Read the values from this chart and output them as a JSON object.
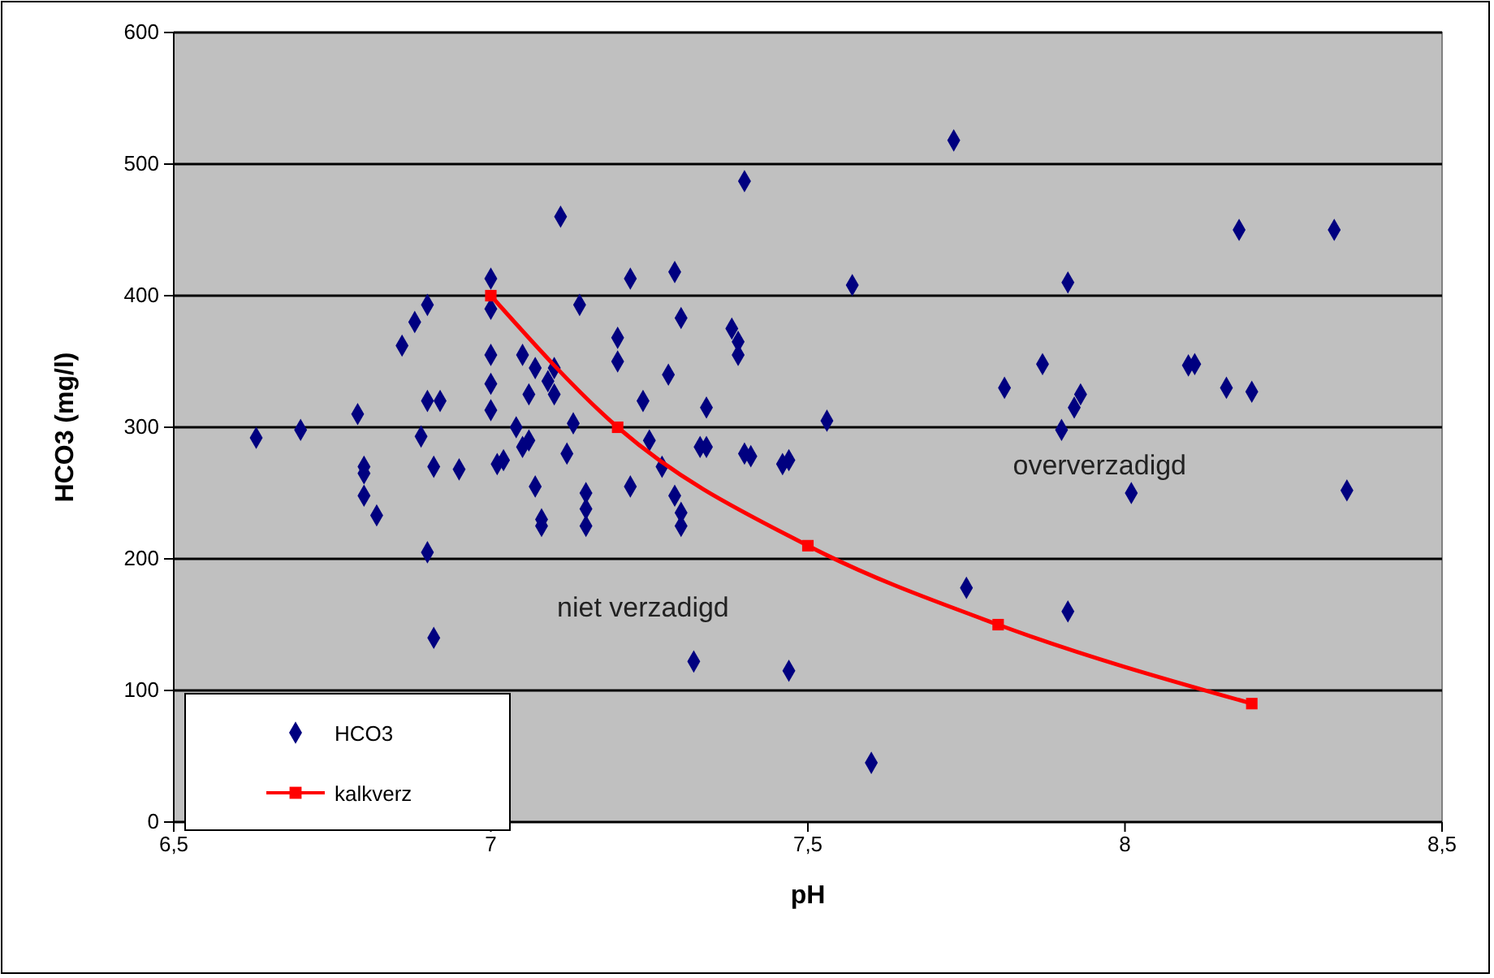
{
  "chart_data": {
    "type": "scatter",
    "xlabel": "pH",
    "ylabel": "HCO3 (mg/l)",
    "xlim": [
      6.5,
      8.5
    ],
    "xticks": [
      {
        "value": 6.5,
        "label": "6,5"
      },
      7,
      {
        "value": 7.5,
        "label": "7,5"
      },
      8,
      {
        "value": 8.5,
        "label": "8,5"
      }
    ],
    "ylim": [
      0,
      600
    ],
    "yticks": [
      0,
      100,
      200,
      300,
      400,
      500,
      600
    ],
    "grid": "y",
    "legend": "bottom left",
    "annotations": [
      "niet verzadigd",
      "oververzadigd"
    ],
    "series": [
      {
        "name": "HCO3",
        "color": "#000080",
        "marker": "diamond",
        "x": [
          6.63,
          6.7,
          6.79,
          6.8,
          6.8,
          6.8,
          6.82,
          6.86,
          6.88,
          6.9,
          6.89,
          6.9,
          6.92,
          6.91,
          6.9,
          6.91,
          6.95,
          7.0,
          7.0,
          7.0,
          7.0,
          7.0,
          7.01,
          7.02,
          7.04,
          7.05,
          7.06,
          7.07,
          7.05,
          7.06,
          7.07,
          7.08,
          7.08,
          7.09,
          7.1,
          7.1,
          7.11,
          7.12,
          7.13,
          7.14,
          7.15,
          7.15,
          7.15,
          7.2,
          7.2,
          7.22,
          7.22,
          7.24,
          7.25,
          7.28,
          7.27,
          7.29,
          7.3,
          7.29,
          7.3,
          7.3,
          7.32,
          7.33,
          7.34,
          7.34,
          7.38,
          7.39,
          7.39,
          7.4,
          7.4,
          7.41,
          7.46,
          7.47,
          7.47,
          7.53,
          7.57,
          7.6,
          7.73,
          7.75,
          7.81,
          7.87,
          7.9,
          7.91,
          7.91,
          7.92,
          7.93,
          8.01,
          8.1,
          8.11,
          8.16,
          8.18,
          8.2,
          8.33,
          8.35
        ],
        "values": [
          292,
          298,
          310,
          270,
          265,
          248,
          233,
          362,
          380,
          393,
          293,
          320,
          320,
          270,
          205,
          140,
          268,
          413,
          390,
          355,
          333,
          313,
          272,
          275,
          300,
          355,
          325,
          345,
          285,
          290,
          255,
          230,
          225,
          335,
          325,
          345,
          460,
          280,
          303,
          393,
          250,
          238,
          225,
          368,
          350,
          413,
          255,
          320,
          290,
          340,
          270,
          418,
          383,
          248,
          235,
          225,
          122,
          285,
          285,
          315,
          375,
          365,
          355,
          487,
          280,
          278,
          272,
          275,
          115,
          305,
          408,
          45,
          518,
          178,
          330,
          348,
          298,
          410,
          160,
          315,
          325,
          250,
          347,
          348,
          330,
          450,
          327,
          450,
          252
        ]
      },
      {
        "name": "kalkverz",
        "type": "line",
        "color": "#ff0000",
        "marker": "square",
        "line_style": "solid",
        "x": [
          7.0,
          7.2,
          7.5,
          7.8,
          8.2
        ],
        "values": [
          400,
          300,
          210,
          150,
          90
        ]
      }
    ]
  }
}
